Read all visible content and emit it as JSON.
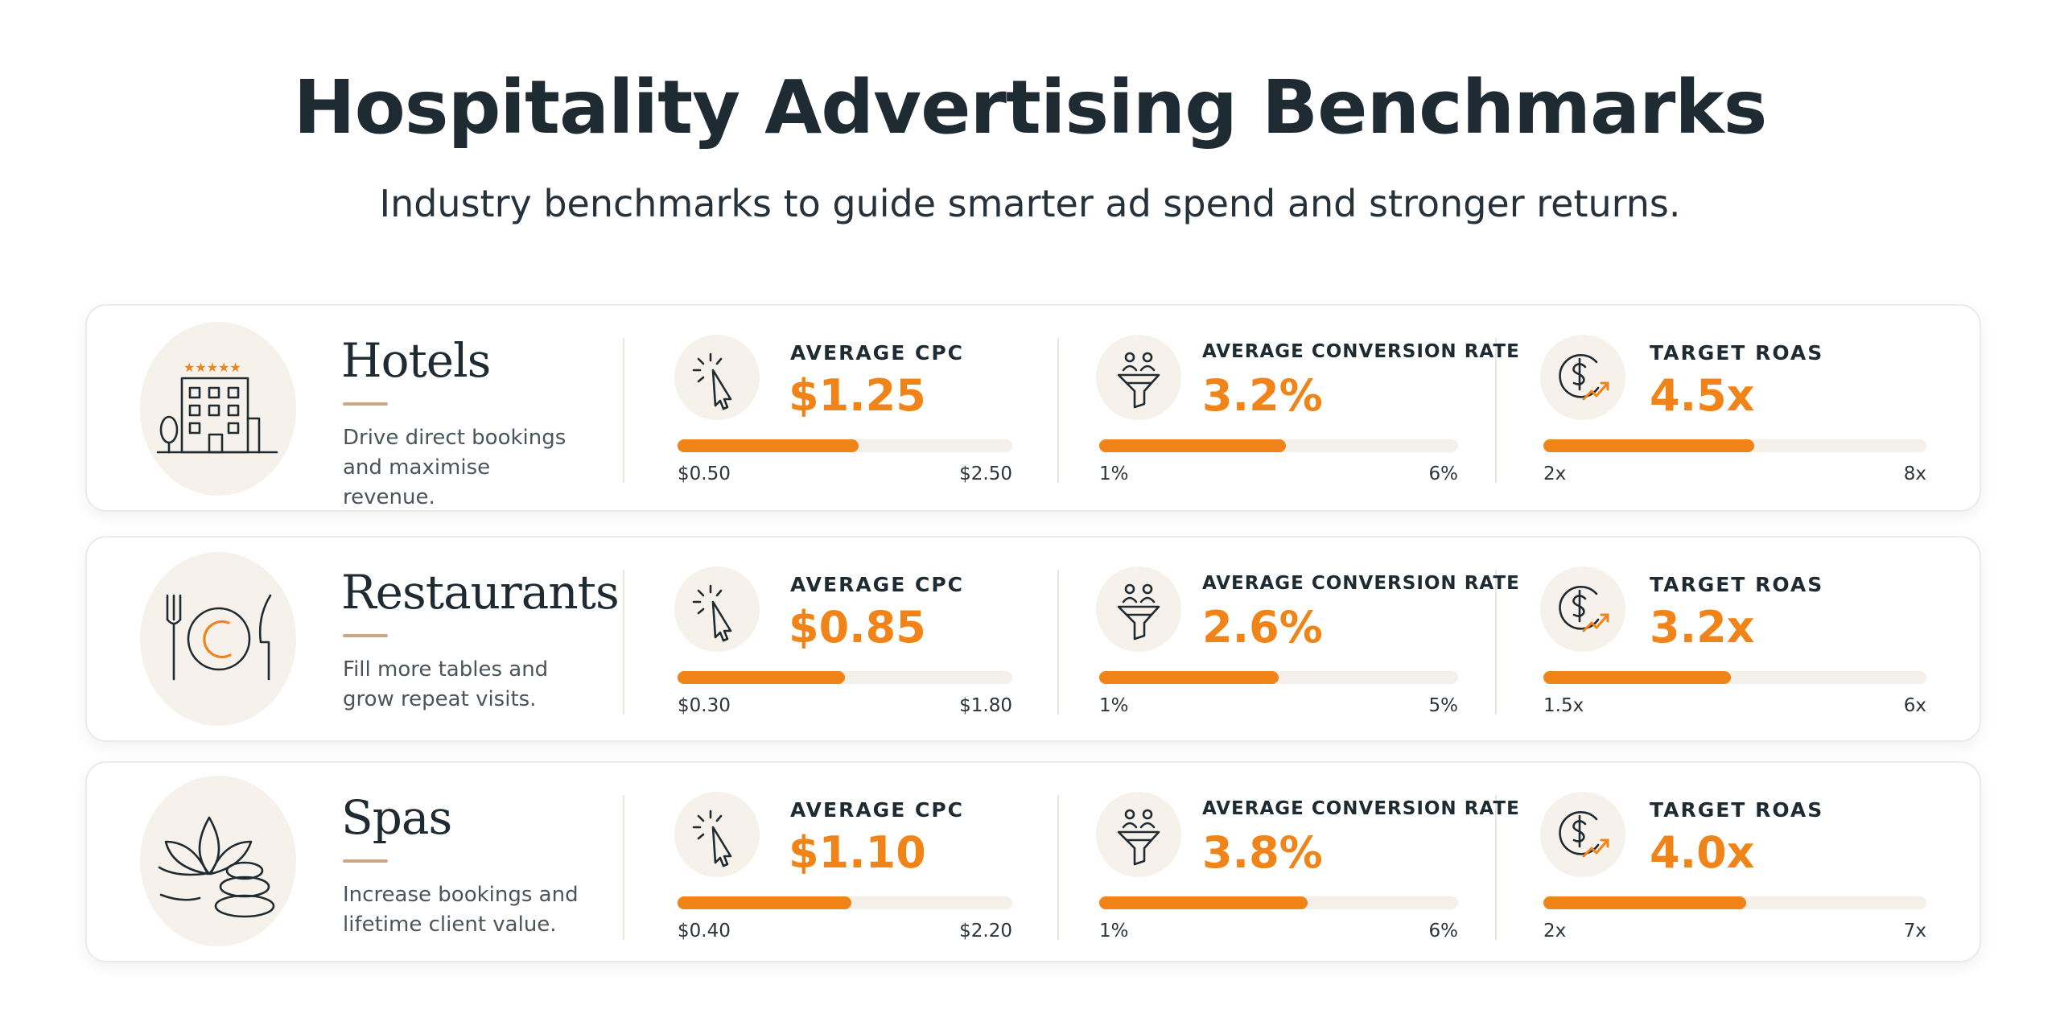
{
  "header": {
    "title": "Hospitality Advertising Benchmarks",
    "subtitle": "Industry benchmarks to guide smarter ad spend and stronger returns."
  },
  "colors": {
    "accent": "#f08418",
    "track": "#f4efe9",
    "text": "#1f2b33",
    "icon_bg": "#f6f1ea"
  },
  "categories": [
    {
      "name": "Hotels",
      "description": "Drive direct bookings and maximise revenue.",
      "icon": "hotel-building-icon",
      "metrics": {
        "cpc": {
          "label": "AVERAGE CPC",
          "value": "$1.25",
          "min": "$0.50",
          "max": "$2.50",
          "fill_fraction": 0.54,
          "icon": "cursor-click-icon"
        },
        "conversion": {
          "label": "AVERAGE CONVERSION RATE",
          "value": "3.2%",
          "min": "1%",
          "max": "6%",
          "fill_fraction": 0.52,
          "icon": "funnel-icon"
        },
        "roas": {
          "label": "TARGET ROAS",
          "value": "4.5x",
          "min": "2x",
          "max": "8x",
          "fill_fraction": 0.55,
          "icon": "dollar-growth-icon"
        }
      }
    },
    {
      "name": "Restaurants",
      "description": "Fill more tables and grow repeat visits.",
      "icon": "plate-cutlery-icon",
      "metrics": {
        "cpc": {
          "label": "AVERAGE CPC",
          "value": "$0.85",
          "min": "$0.30",
          "max": "$1.80",
          "fill_fraction": 0.5,
          "icon": "cursor-click-icon"
        },
        "conversion": {
          "label": "AVERAGE CONVERSION RATE",
          "value": "2.6%",
          "min": "1%",
          "max": "5%",
          "fill_fraction": 0.5,
          "icon": "funnel-icon"
        },
        "roas": {
          "label": "TARGET ROAS",
          "value": "3.2x",
          "min": "1.5x",
          "max": "6x",
          "fill_fraction": 0.49,
          "icon": "dollar-growth-icon"
        }
      }
    },
    {
      "name": "Spas",
      "description": "Increase bookings and lifetime client value.",
      "icon": "lotus-stones-icon",
      "metrics": {
        "cpc": {
          "label": "AVERAGE CPC",
          "value": "$1.10",
          "min": "$0.40",
          "max": "$2.20",
          "fill_fraction": 0.52,
          "icon": "cursor-click-icon"
        },
        "conversion": {
          "label": "AVERAGE CONVERSION RATE",
          "value": "3.8%",
          "min": "1%",
          "max": "6%",
          "fill_fraction": 0.58,
          "icon": "funnel-icon"
        },
        "roas": {
          "label": "TARGET ROAS",
          "value": "4.0x",
          "min": "2x",
          "max": "7x",
          "fill_fraction": 0.53,
          "icon": "dollar-growth-icon"
        }
      }
    }
  ]
}
